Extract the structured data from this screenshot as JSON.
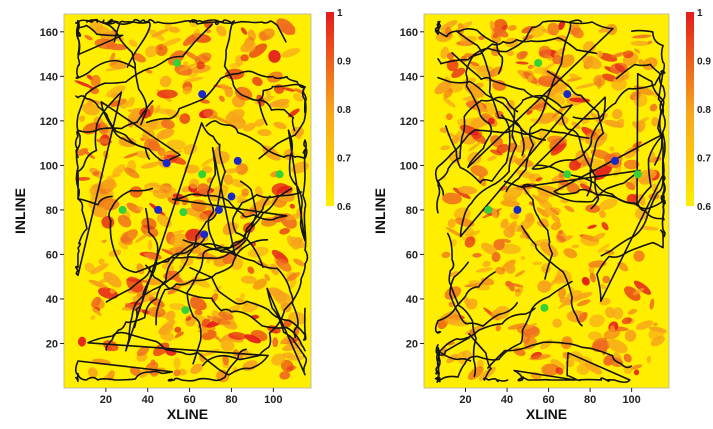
{
  "figure": {
    "colors": {
      "low": "#ffee00",
      "mid": "#f7a21b",
      "high": "#e41a1c",
      "contour": "#141414",
      "green_marker": "#35d135",
      "blue_marker": "#1a27c9"
    }
  },
  "chart_data": [
    {
      "type": "heatmap",
      "title": "",
      "xlabel": "XLINE",
      "ylabel": "INLINE",
      "xlim": [
        0,
        118
      ],
      "ylim": [
        0,
        168
      ],
      "x_ticks": [
        "20",
        "40",
        "60",
        "80",
        "100"
      ],
      "y_ticks": [
        "20",
        "40",
        "60",
        "80",
        "100",
        "120",
        "140",
        "160"
      ],
      "colorbar": {
        "range": [
          0.6,
          1
        ],
        "tick_labels": [
          "0.6",
          "0.7",
          "0.8",
          "0.9",
          "1"
        ]
      },
      "grid": false,
      "legend": "none",
      "markers": {
        "green": [
          [
            54,
            146
          ],
          [
            66,
            96
          ],
          [
            103,
            96
          ],
          [
            28,
            80
          ],
          [
            57,
            79
          ],
          [
            58,
            35
          ]
        ],
        "blue": [
          [
            66,
            132
          ],
          [
            49,
            101
          ],
          [
            83,
            102
          ],
          [
            80,
            86
          ],
          [
            45,
            80
          ],
          [
            74,
            80
          ],
          [
            67,
            69
          ]
        ]
      }
    },
    {
      "type": "heatmap",
      "title": "",
      "xlabel": "XLINE",
      "ylabel": "INLINE",
      "xlim": [
        0,
        118
      ],
      "ylim": [
        0,
        168
      ],
      "x_ticks": [
        "20",
        "40",
        "60",
        "80",
        "100"
      ],
      "y_ticks": [
        "20",
        "40",
        "60",
        "80",
        "100",
        "120",
        "140",
        "160"
      ],
      "colorbar": {
        "range": [
          0.6,
          1
        ],
        "tick_labels": [
          "0.6",
          "0.7",
          "0.8",
          "0.9",
          "1"
        ]
      },
      "grid": false,
      "legend": "none",
      "markers": {
        "green": [
          [
            55,
            146
          ],
          [
            69,
            96
          ],
          [
            103,
            96
          ],
          [
            31,
            80
          ],
          [
            58,
            36
          ]
        ],
        "blue": [
          [
            69,
            132
          ],
          [
            92,
            102
          ],
          [
            45,
            80
          ]
        ]
      }
    }
  ]
}
